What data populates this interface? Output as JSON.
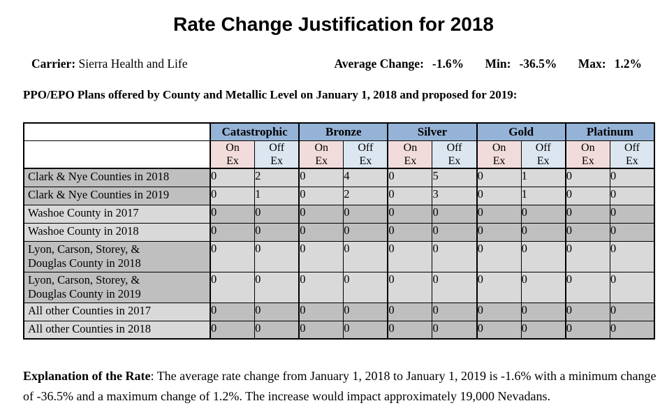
{
  "title": "Rate Change Justification for 2018",
  "carrier": {
    "label": "Carrier:",
    "value": "Sierra Health and Life"
  },
  "stats": [
    {
      "label": "Average Change:",
      "value": "-1.6%"
    },
    {
      "label": "Min:",
      "value": "-36.5%"
    },
    {
      "label": "Max:",
      "value": "1.2%"
    }
  ],
  "table_caption": "PPO/EPO Plans offered by County and Metallic Level on January 1, 2018 and proposed for 2019:",
  "table": {
    "metallic_levels": [
      "Catastrophic",
      "Bronze",
      "Silver",
      "Gold",
      "Platinum"
    ],
    "exchange_subheaders": [
      "On\nEx",
      "Off\nEx"
    ],
    "rows": [
      {
        "label": "Clark & Nye Counties in 2018",
        "group": 0,
        "values": [
          0,
          2,
          0,
          4,
          0,
          5,
          0,
          1,
          0,
          0
        ]
      },
      {
        "label": "Clark & Nye Counties in 2019",
        "group": 0,
        "values": [
          0,
          1,
          0,
          2,
          0,
          3,
          0,
          1,
          0,
          0
        ]
      },
      {
        "label": "Washoe County in 2017",
        "group": 1,
        "values": [
          0,
          0,
          0,
          0,
          0,
          0,
          0,
          0,
          0,
          0
        ]
      },
      {
        "label": "Washoe County in 2018",
        "group": 1,
        "values": [
          0,
          0,
          0,
          0,
          0,
          0,
          0,
          0,
          0,
          0
        ]
      },
      {
        "label": "Lyon, Carson, Storey, &\nDouglas County in 2018",
        "group": 2,
        "values": [
          0,
          0,
          0,
          0,
          0,
          0,
          0,
          0,
          0,
          0
        ]
      },
      {
        "label": "Lyon, Carson, Storey, &\nDouglas County in 2019",
        "group": 2,
        "values": [
          0,
          0,
          0,
          0,
          0,
          0,
          0,
          0,
          0,
          0
        ]
      },
      {
        "label": "All other Counties in 2017",
        "group": 3,
        "values": [
          0,
          0,
          0,
          0,
          0,
          0,
          0,
          0,
          0,
          0
        ]
      },
      {
        "label": "All other Counties in 2018",
        "group": 3,
        "values": [
          0,
          0,
          0,
          0,
          0,
          0,
          0,
          0,
          0,
          0
        ]
      }
    ]
  },
  "explanation": {
    "lead": "Explanation of the Rate",
    "body": ":  The average rate change from January 1, 2018 to January 1, 2019 is -1.6% with a minimum change of -36.5% and a maximum change of 1.2%.  The increase would impact approximately 19,000 Nevadans."
  },
  "colors": {
    "header_blue": "#95B3D7",
    "on_exchange_pink": "#F2DCDB",
    "off_exchange_blue": "#DCE6F1",
    "shade_dark_gray": "#BFBFBF",
    "shade_light_gray": "#D9D9D9"
  }
}
